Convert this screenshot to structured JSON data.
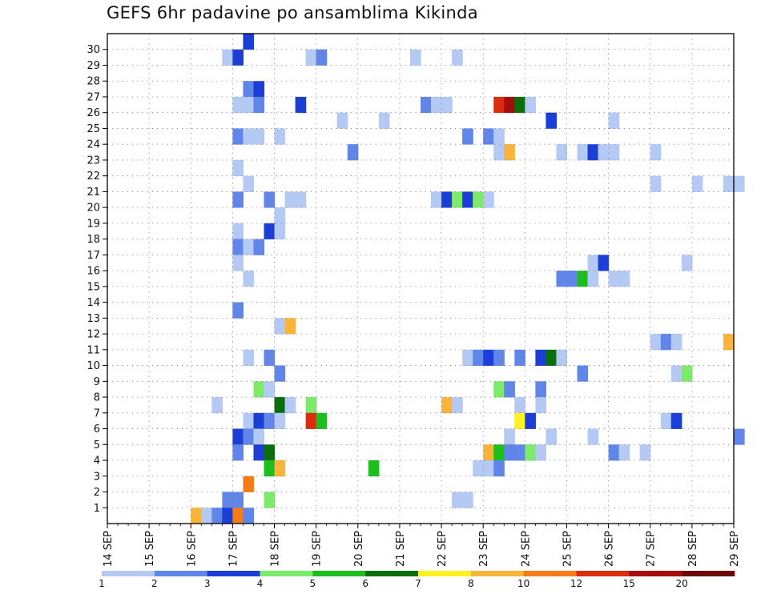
{
  "title": "GEFS 6hr padavine po ansamblima Kikinda",
  "chart_data": {
    "type": "heatmap",
    "title": "GEFS 6hr padavine po ansamblima Kikinda",
    "x_start": "14 SEP",
    "x_end": "29 SEP",
    "x_step_hours": 6,
    "x_tick_labels": [
      "14 SEP",
      "15 SEP",
      "16 SEP",
      "17 SEP",
      "18 SEP",
      "19 SEP",
      "20 SEP",
      "21 SEP",
      "22 SEP",
      "23 SEP",
      "24 SEP",
      "25 SEP",
      "26 SEP",
      "27 SEP",
      "28 SEP",
      "29 SEP"
    ],
    "y_tick_labels": [
      "1",
      "2",
      "3",
      "4",
      "5",
      "6",
      "7",
      "8",
      "9",
      "10",
      "11",
      "12",
      "13",
      "14",
      "15",
      "16",
      "17",
      "18",
      "19",
      "20",
      "21",
      "22",
      "23",
      "24",
      "25",
      "26",
      "27",
      "28",
      "29",
      "30"
    ],
    "ylim": [
      1,
      30
    ],
    "grid": true,
    "colorbar": {
      "levels": [
        "1",
        "2",
        "3",
        "4",
        "5",
        "6",
        "7",
        "8",
        "10",
        "12",
        "15",
        "20"
      ],
      "colors": [
        "#b5c9f5",
        "#5f86e8",
        "#1b3fd6",
        "#7eea6a",
        "#1fbe1f",
        "#0b6e0b",
        "#fff21f",
        "#fbb43a",
        "#f57c17",
        "#dc2d0d",
        "#a50c0c",
        "#6b0808"
      ]
    },
    "cells": [
      {
        "m": 30,
        "t": 13,
        "c": 2
      },
      {
        "m": 29,
        "t": 11,
        "c": 0
      },
      {
        "m": 29,
        "t": 12,
        "c": 2
      },
      {
        "m": 29,
        "t": 19,
        "c": 0
      },
      {
        "m": 29,
        "t": 20,
        "c": 1
      },
      {
        "m": 29,
        "t": 29,
        "c": 0
      },
      {
        "m": 29,
        "t": 33,
        "c": 0
      },
      {
        "m": 27,
        "t": 13,
        "c": 1
      },
      {
        "m": 27,
        "t": 14,
        "c": 2
      },
      {
        "m": 26,
        "t": 12,
        "c": 0
      },
      {
        "m": 26,
        "t": 13,
        "c": 0
      },
      {
        "m": 26,
        "t": 14,
        "c": 1
      },
      {
        "m": 26,
        "t": 18,
        "c": 2
      },
      {
        "m": 26,
        "t": 30,
        "c": 1
      },
      {
        "m": 26,
        "t": 31,
        "c": 0
      },
      {
        "m": 26,
        "t": 32,
        "c": 0
      },
      {
        "m": 26,
        "t": 37,
        "c": 9
      },
      {
        "m": 26,
        "t": 38,
        "c": 10
      },
      {
        "m": 26,
        "t": 39,
        "c": 5
      },
      {
        "m": 26,
        "t": 40,
        "c": 0
      },
      {
        "m": 25,
        "t": 22,
        "c": 0
      },
      {
        "m": 25,
        "t": 26,
        "c": 0
      },
      {
        "m": 25,
        "t": 42,
        "c": 2
      },
      {
        "m": 25,
        "t": 48,
        "c": 0
      },
      {
        "m": 24,
        "t": 12,
        "c": 1
      },
      {
        "m": 24,
        "t": 13,
        "c": 0
      },
      {
        "m": 24,
        "t": 14,
        "c": 0
      },
      {
        "m": 24,
        "t": 16,
        "c": 0
      },
      {
        "m": 24,
        "t": 34,
        "c": 1
      },
      {
        "m": 24,
        "t": 36,
        "c": 1
      },
      {
        "m": 24,
        "t": 37,
        "c": 0
      },
      {
        "m": 23,
        "t": 23,
        "c": 1
      },
      {
        "m": 23,
        "t": 37,
        "c": 0
      },
      {
        "m": 23,
        "t": 38,
        "c": 7
      },
      {
        "m": 23,
        "t": 43,
        "c": 0
      },
      {
        "m": 23,
        "t": 45,
        "c": 0
      },
      {
        "m": 23,
        "t": 46,
        "c": 2
      },
      {
        "m": 23,
        "t": 47,
        "c": 0
      },
      {
        "m": 23,
        "t": 48,
        "c": 0
      },
      {
        "m": 23,
        "t": 52,
        "c": 0
      },
      {
        "m": 22,
        "t": 12,
        "c": 0
      },
      {
        "m": 21,
        "t": 13,
        "c": 0
      },
      {
        "m": 21,
        "t": 52,
        "c": 0
      },
      {
        "m": 21,
        "t": 56,
        "c": 0
      },
      {
        "m": 21,
        "t": 59,
        "c": 0
      },
      {
        "m": 21,
        "t": 60,
        "c": 0
      },
      {
        "m": 20,
        "t": 12,
        "c": 1
      },
      {
        "m": 20,
        "t": 15,
        "c": 1
      },
      {
        "m": 20,
        "t": 17,
        "c": 0
      },
      {
        "m": 20,
        "t": 18,
        "c": 0
      },
      {
        "m": 20,
        "t": 31,
        "c": 0
      },
      {
        "m": 20,
        "t": 32,
        "c": 2
      },
      {
        "m": 20,
        "t": 33,
        "c": 3
      },
      {
        "m": 20,
        "t": 34,
        "c": 2
      },
      {
        "m": 20,
        "t": 35,
        "c": 3
      },
      {
        "m": 20,
        "t": 36,
        "c": 0
      },
      {
        "m": 19,
        "t": 16,
        "c": 0
      },
      {
        "m": 18,
        "t": 12,
        "c": 0
      },
      {
        "m": 18,
        "t": 15,
        "c": 2
      },
      {
        "m": 18,
        "t": 16,
        "c": 0
      },
      {
        "m": 17,
        "t": 12,
        "c": 1
      },
      {
        "m": 17,
        "t": 13,
        "c": 0
      },
      {
        "m": 17,
        "t": 14,
        "c": 1
      },
      {
        "m": 16,
        "t": 12,
        "c": 0
      },
      {
        "m": 16,
        "t": 46,
        "c": 0
      },
      {
        "m": 16,
        "t": 47,
        "c": 2
      },
      {
        "m": 16,
        "t": 55,
        "c": 0
      },
      {
        "m": 15,
        "t": 13,
        "c": 0
      },
      {
        "m": 15,
        "t": 43,
        "c": 1
      },
      {
        "m": 15,
        "t": 44,
        "c": 1
      },
      {
        "m": 15,
        "t": 45,
        "c": 4
      },
      {
        "m": 15,
        "t": 46,
        "c": 0
      },
      {
        "m": 15,
        "t": 48,
        "c": 0
      },
      {
        "m": 15,
        "t": 49,
        "c": 0
      },
      {
        "m": 13,
        "t": 12,
        "c": 1
      },
      {
        "m": 12,
        "t": 16,
        "c": 0
      },
      {
        "m": 12,
        "t": 17,
        "c": 7
      },
      {
        "m": 11,
        "t": 52,
        "c": 0
      },
      {
        "m": 11,
        "t": 53,
        "c": 1
      },
      {
        "m": 11,
        "t": 54,
        "c": 0
      },
      {
        "m": 11,
        "t": 59,
        "c": 7
      },
      {
        "m": 10,
        "t": 13,
        "c": 0
      },
      {
        "m": 10,
        "t": 15,
        "c": 1
      },
      {
        "m": 10,
        "t": 34,
        "c": 0
      },
      {
        "m": 10,
        "t": 35,
        "c": 1
      },
      {
        "m": 10,
        "t": 36,
        "c": 2
      },
      {
        "m": 10,
        "t": 37,
        "c": 1
      },
      {
        "m": 10,
        "t": 39,
        "c": 1
      },
      {
        "m": 10,
        "t": 41,
        "c": 2
      },
      {
        "m": 10,
        "t": 42,
        "c": 5
      },
      {
        "m": 10,
        "t": 43,
        "c": 0
      },
      {
        "m": 9,
        "t": 16,
        "c": 1
      },
      {
        "m": 9,
        "t": 45,
        "c": 1
      },
      {
        "m": 9,
        "t": 54,
        "c": 0
      },
      {
        "m": 9,
        "t": 55,
        "c": 3
      },
      {
        "m": 8,
        "t": 14,
        "c": 3
      },
      {
        "m": 8,
        "t": 15,
        "c": 0
      },
      {
        "m": 8,
        "t": 37,
        "c": 3
      },
      {
        "m": 8,
        "t": 38,
        "c": 1
      },
      {
        "m": 8,
        "t": 41,
        "c": 1
      },
      {
        "m": 7,
        "t": 10,
        "c": 0
      },
      {
        "m": 7,
        "t": 16,
        "c": 5
      },
      {
        "m": 7,
        "t": 17,
        "c": 0
      },
      {
        "m": 7,
        "t": 19,
        "c": 3
      },
      {
        "m": 7,
        "t": 32,
        "c": 7
      },
      {
        "m": 7,
        "t": 33,
        "c": 0
      },
      {
        "m": 7,
        "t": 39,
        "c": 0
      },
      {
        "m": 7,
        "t": 41,
        "c": 0
      },
      {
        "m": 6,
        "t": 13,
        "c": 0
      },
      {
        "m": 6,
        "t": 14,
        "c": 2
      },
      {
        "m": 6,
        "t": 15,
        "c": 1
      },
      {
        "m": 6,
        "t": 16,
        "c": 0
      },
      {
        "m": 6,
        "t": 19,
        "c": 9
      },
      {
        "m": 6,
        "t": 20,
        "c": 4
      },
      {
        "m": 6,
        "t": 39,
        "c": 6
      },
      {
        "m": 6,
        "t": 40,
        "c": 2
      },
      {
        "m": 6,
        "t": 53,
        "c": 0
      },
      {
        "m": 6,
        "t": 54,
        "c": 2
      },
      {
        "m": 5,
        "t": 12,
        "c": 2
      },
      {
        "m": 5,
        "t": 13,
        "c": 1
      },
      {
        "m": 5,
        "t": 14,
        "c": 0
      },
      {
        "m": 5,
        "t": 38,
        "c": 0
      },
      {
        "m": 5,
        "t": 42,
        "c": 0
      },
      {
        "m": 5,
        "t": 46,
        "c": 0
      },
      {
        "m": 5,
        "t": 60,
        "c": 1
      },
      {
        "m": 4,
        "t": 12,
        "c": 1
      },
      {
        "m": 4,
        "t": 14,
        "c": 2
      },
      {
        "m": 4,
        "t": 15,
        "c": 5
      },
      {
        "m": 4,
        "t": 36,
        "c": 7
      },
      {
        "m": 4,
        "t": 37,
        "c": 4
      },
      {
        "m": 4,
        "t": 38,
        "c": 1
      },
      {
        "m": 4,
        "t": 39,
        "c": 1
      },
      {
        "m": 4,
        "t": 40,
        "c": 3
      },
      {
        "m": 4,
        "t": 41,
        "c": 0
      },
      {
        "m": 4,
        "t": 48,
        "c": 1
      },
      {
        "m": 4,
        "t": 49,
        "c": 0
      },
      {
        "m": 4,
        "t": 51,
        "c": 0
      },
      {
        "m": 3,
        "t": 15,
        "c": 4
      },
      {
        "m": 3,
        "t": 16,
        "c": 7
      },
      {
        "m": 3,
        "t": 25,
        "c": 4
      },
      {
        "m": 3,
        "t": 35,
        "c": 0
      },
      {
        "m": 3,
        "t": 36,
        "c": 0
      },
      {
        "m": 3,
        "t": 37,
        "c": 1
      },
      {
        "m": 2,
        "t": 13,
        "c": 8
      },
      {
        "m": 1,
        "t": 11,
        "c": 1
      },
      {
        "m": 1,
        "t": 12,
        "c": 1
      },
      {
        "m": 1,
        "t": 15,
        "c": 3
      },
      {
        "m": 1,
        "t": 33,
        "c": 0
      },
      {
        "m": 1,
        "t": 34,
        "c": 0
      },
      {
        "m": 0,
        "t": 8,
        "c": 7
      },
      {
        "m": 0,
        "t": 9,
        "c": 0
      },
      {
        "m": 0,
        "t": 10,
        "c": 1
      },
      {
        "m": 0,
        "t": 11,
        "c": 2
      },
      {
        "m": 0,
        "t": 12,
        "c": 8
      },
      {
        "m": 0,
        "t": 13,
        "c": 1
      }
    ]
  }
}
